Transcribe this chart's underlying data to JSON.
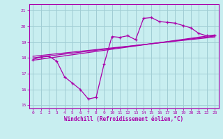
{
  "xlabel": "Windchill (Refroidissement éolien,°C)",
  "background_color": "#c8eef0",
  "grid_color": "#a0ccd4",
  "line_color": "#aa00aa",
  "xlim": [
    -0.5,
    23.5
  ],
  "ylim": [
    14.8,
    21.4
  ],
  "xticks": [
    0,
    1,
    2,
    3,
    4,
    5,
    6,
    7,
    8,
    9,
    10,
    11,
    12,
    13,
    14,
    15,
    16,
    17,
    18,
    19,
    20,
    21,
    22,
    23
  ],
  "yticks": [
    15,
    16,
    17,
    18,
    19,
    20,
    21
  ],
  "series1_x": [
    0,
    1,
    2,
    3,
    4,
    5,
    6,
    7,
    8,
    9,
    10,
    11,
    12,
    13,
    14,
    15,
    16,
    17,
    18,
    19,
    20,
    21,
    22,
    23
  ],
  "series1_y": [
    17.9,
    18.05,
    18.1,
    17.8,
    16.8,
    16.4,
    16.0,
    15.4,
    15.5,
    17.6,
    19.35,
    19.3,
    19.4,
    19.15,
    20.5,
    20.55,
    20.3,
    20.25,
    20.2,
    20.05,
    19.9,
    19.55,
    19.4,
    19.4
  ],
  "series2_x": [
    0,
    23
  ],
  "series2_y": [
    17.85,
    19.45
  ],
  "series3_x": [
    0,
    23
  ],
  "series3_y": [
    18.0,
    19.38
  ],
  "series4_x": [
    0,
    23
  ],
  "series4_y": [
    18.1,
    19.32
  ]
}
